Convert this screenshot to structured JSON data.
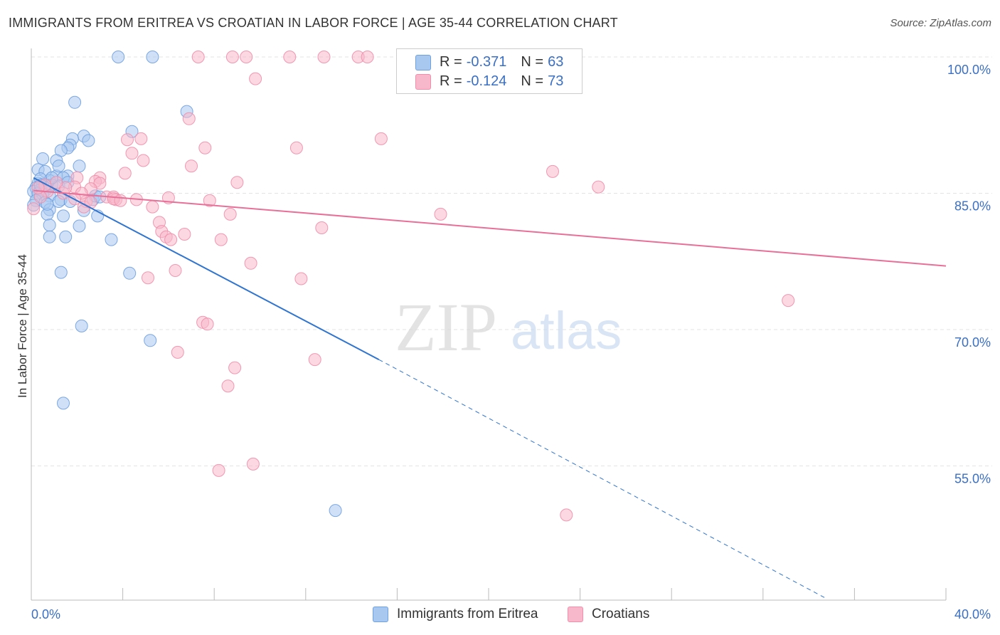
{
  "title": "IMMIGRANTS FROM ERITREA VS CROATIAN IN LABOR FORCE | AGE 35-44 CORRELATION CHART",
  "source": "Source: ZipAtlas.com",
  "watermark": {
    "zip": "ZIP",
    "atlas": "atlas"
  },
  "chart_data": {
    "type": "scatter",
    "ylabel": "In Labor Force | Age 35-44",
    "xlim": [
      0,
      40
    ],
    "ylim": [
      40,
      102
    ],
    "x_tick_labels": [
      {
        "value": 0,
        "label": "0.0%"
      },
      {
        "value": 40,
        "label": "40.0%"
      }
    ],
    "y_tick_labels": [
      {
        "value": 100,
        "label": "100.0%"
      },
      {
        "value": 85,
        "label": "85.0%"
      },
      {
        "value": 70,
        "label": "70.0%"
      },
      {
        "value": 55,
        "label": "55.0%"
      }
    ],
    "grid": true,
    "legend": {
      "placement": "top-center",
      "rows": [
        {
          "r_label": "R =",
          "r_value": "-0.371",
          "n_label": "N =",
          "n_value": "63",
          "color": "#a9c8f0"
        },
        {
          "r_label": "R =",
          "r_value": "-0.124",
          "n_label": "N =",
          "n_value": "73",
          "color": "#f7b8cb"
        }
      ]
    },
    "series": [
      {
        "name": "Immigrants from Eritrea",
        "color": "#6fa0e0",
        "fill": "#a9c8f0",
        "trend": {
          "x0": 0.1,
          "y0": 86.7,
          "x1": 15.2,
          "y1": 66.7,
          "dash_to_x": 34.7,
          "dash_to_y": 40.5,
          "color": "#2f74d0"
        },
        "points": [
          [
            3.8,
            100.0
          ],
          [
            5.3,
            100.0
          ],
          [
            1.9,
            95.0
          ],
          [
            6.8,
            94.0
          ],
          [
            4.4,
            91.8
          ],
          [
            2.3,
            91.3
          ],
          [
            1.8,
            91.0
          ],
          [
            2.5,
            90.8
          ],
          [
            1.7,
            90.3
          ],
          [
            1.6,
            90.0
          ],
          [
            1.3,
            89.7
          ],
          [
            0.5,
            88.8
          ],
          [
            1.1,
            88.6
          ],
          [
            2.1,
            88.0
          ],
          [
            0.3,
            87.6
          ],
          [
            0.6,
            87.4
          ],
          [
            1.6,
            86.9
          ],
          [
            1.1,
            86.9
          ],
          [
            1.4,
            86.7
          ],
          [
            0.8,
            86.4
          ],
          [
            0.3,
            86.1
          ],
          [
            0.5,
            86.0
          ],
          [
            0.7,
            85.9
          ],
          [
            0.9,
            85.9
          ],
          [
            1.2,
            85.8
          ],
          [
            0.2,
            85.6
          ],
          [
            0.4,
            85.4
          ],
          [
            0.6,
            85.3
          ],
          [
            0.1,
            85.2
          ],
          [
            0.3,
            85.0
          ],
          [
            0.5,
            84.9
          ],
          [
            0.8,
            84.7
          ],
          [
            1.3,
            84.3
          ],
          [
            0.2,
            84.2
          ],
          [
            1.2,
            84.1
          ],
          [
            1.7,
            84.1
          ],
          [
            0.6,
            84.0
          ],
          [
            2.7,
            84.3
          ],
          [
            0.1,
            83.7
          ],
          [
            0.8,
            83.2
          ],
          [
            2.3,
            83.1
          ],
          [
            0.7,
            82.7
          ],
          [
            1.4,
            82.5
          ],
          [
            2.9,
            82.5
          ],
          [
            0.8,
            81.5
          ],
          [
            2.1,
            81.4
          ],
          [
            0.8,
            80.2
          ],
          [
            1.5,
            80.2
          ],
          [
            3.5,
            79.9
          ],
          [
            1.3,
            76.3
          ],
          [
            4.3,
            76.2
          ],
          [
            2.2,
            70.4
          ],
          [
            5.2,
            68.8
          ],
          [
            1.4,
            61.9
          ],
          [
            13.3,
            50.1
          ],
          [
            0.9,
            86.7
          ],
          [
            1.6,
            86.2
          ],
          [
            0.4,
            86.6
          ],
          [
            2.8,
            84.7
          ],
          [
            1.2,
            88.0
          ],
          [
            0.7,
            83.8
          ],
          [
            3.0,
            84.6
          ],
          [
            0.4,
            85.9
          ]
        ]
      },
      {
        "name": "Croatians",
        "color": "#ef8eab",
        "fill": "#f7b8cb",
        "trend": {
          "x0": 0.1,
          "y0": 85.3,
          "x1": 40.0,
          "y1": 77.0,
          "color": "#e87098"
        },
        "points": [
          [
            7.3,
            100.0
          ],
          [
            8.8,
            100.0
          ],
          [
            9.4,
            100.0
          ],
          [
            11.3,
            100.0
          ],
          [
            12.8,
            100.0
          ],
          [
            14.3,
            100.0
          ],
          [
            14.7,
            100.0
          ],
          [
            16.8,
            100.0
          ],
          [
            9.8,
            97.6
          ],
          [
            6.9,
            93.2
          ],
          [
            15.3,
            91.0
          ],
          [
            4.2,
            90.9
          ],
          [
            4.8,
            91.0
          ],
          [
            7.6,
            90.0
          ],
          [
            11.6,
            90.0
          ],
          [
            4.4,
            89.4
          ],
          [
            4.9,
            88.6
          ],
          [
            7.0,
            88.0
          ],
          [
            22.8,
            87.4
          ],
          [
            4.1,
            87.2
          ],
          [
            3.0,
            86.7
          ],
          [
            2.0,
            86.7
          ],
          [
            2.8,
            86.3
          ],
          [
            3.0,
            86.1
          ],
          [
            9.0,
            86.2
          ],
          [
            24.8,
            85.7
          ],
          [
            1.9,
            85.7
          ],
          [
            2.6,
            85.5
          ],
          [
            0.7,
            85.2
          ],
          [
            1.4,
            85.0
          ],
          [
            3.3,
            84.6
          ],
          [
            3.6,
            84.6
          ],
          [
            3.7,
            84.3
          ],
          [
            4.6,
            84.3
          ],
          [
            6.0,
            84.5
          ],
          [
            7.8,
            84.2
          ],
          [
            3.6,
            84.4
          ],
          [
            2.4,
            84.1
          ],
          [
            2.3,
            83.5
          ],
          [
            5.3,
            83.5
          ],
          [
            0.4,
            84.6
          ],
          [
            0.1,
            83.3
          ],
          [
            8.7,
            82.7
          ],
          [
            17.9,
            82.7
          ],
          [
            5.6,
            81.8
          ],
          [
            12.7,
            81.2
          ],
          [
            5.7,
            80.8
          ],
          [
            6.7,
            80.5
          ],
          [
            5.9,
            80.2
          ],
          [
            8.3,
            79.9
          ],
          [
            6.1,
            79.9
          ],
          [
            9.6,
            77.3
          ],
          [
            6.3,
            76.5
          ],
          [
            5.1,
            75.7
          ],
          [
            11.8,
            75.6
          ],
          [
            33.1,
            73.2
          ],
          [
            7.5,
            70.8
          ],
          [
            7.7,
            70.6
          ],
          [
            12.4,
            66.7
          ],
          [
            6.4,
            67.5
          ],
          [
            8.9,
            65.8
          ],
          [
            8.6,
            63.8
          ],
          [
            9.7,
            55.2
          ],
          [
            8.2,
            54.5
          ],
          [
            23.4,
            49.6
          ],
          [
            1.5,
            85.6
          ],
          [
            2.2,
            85.0
          ],
          [
            1.1,
            86.2
          ],
          [
            0.6,
            85.9
          ],
          [
            0.3,
            85.6
          ],
          [
            1.9,
            84.4
          ],
          [
            2.6,
            84.0
          ],
          [
            3.9,
            84.2
          ]
        ]
      }
    ]
  }
}
